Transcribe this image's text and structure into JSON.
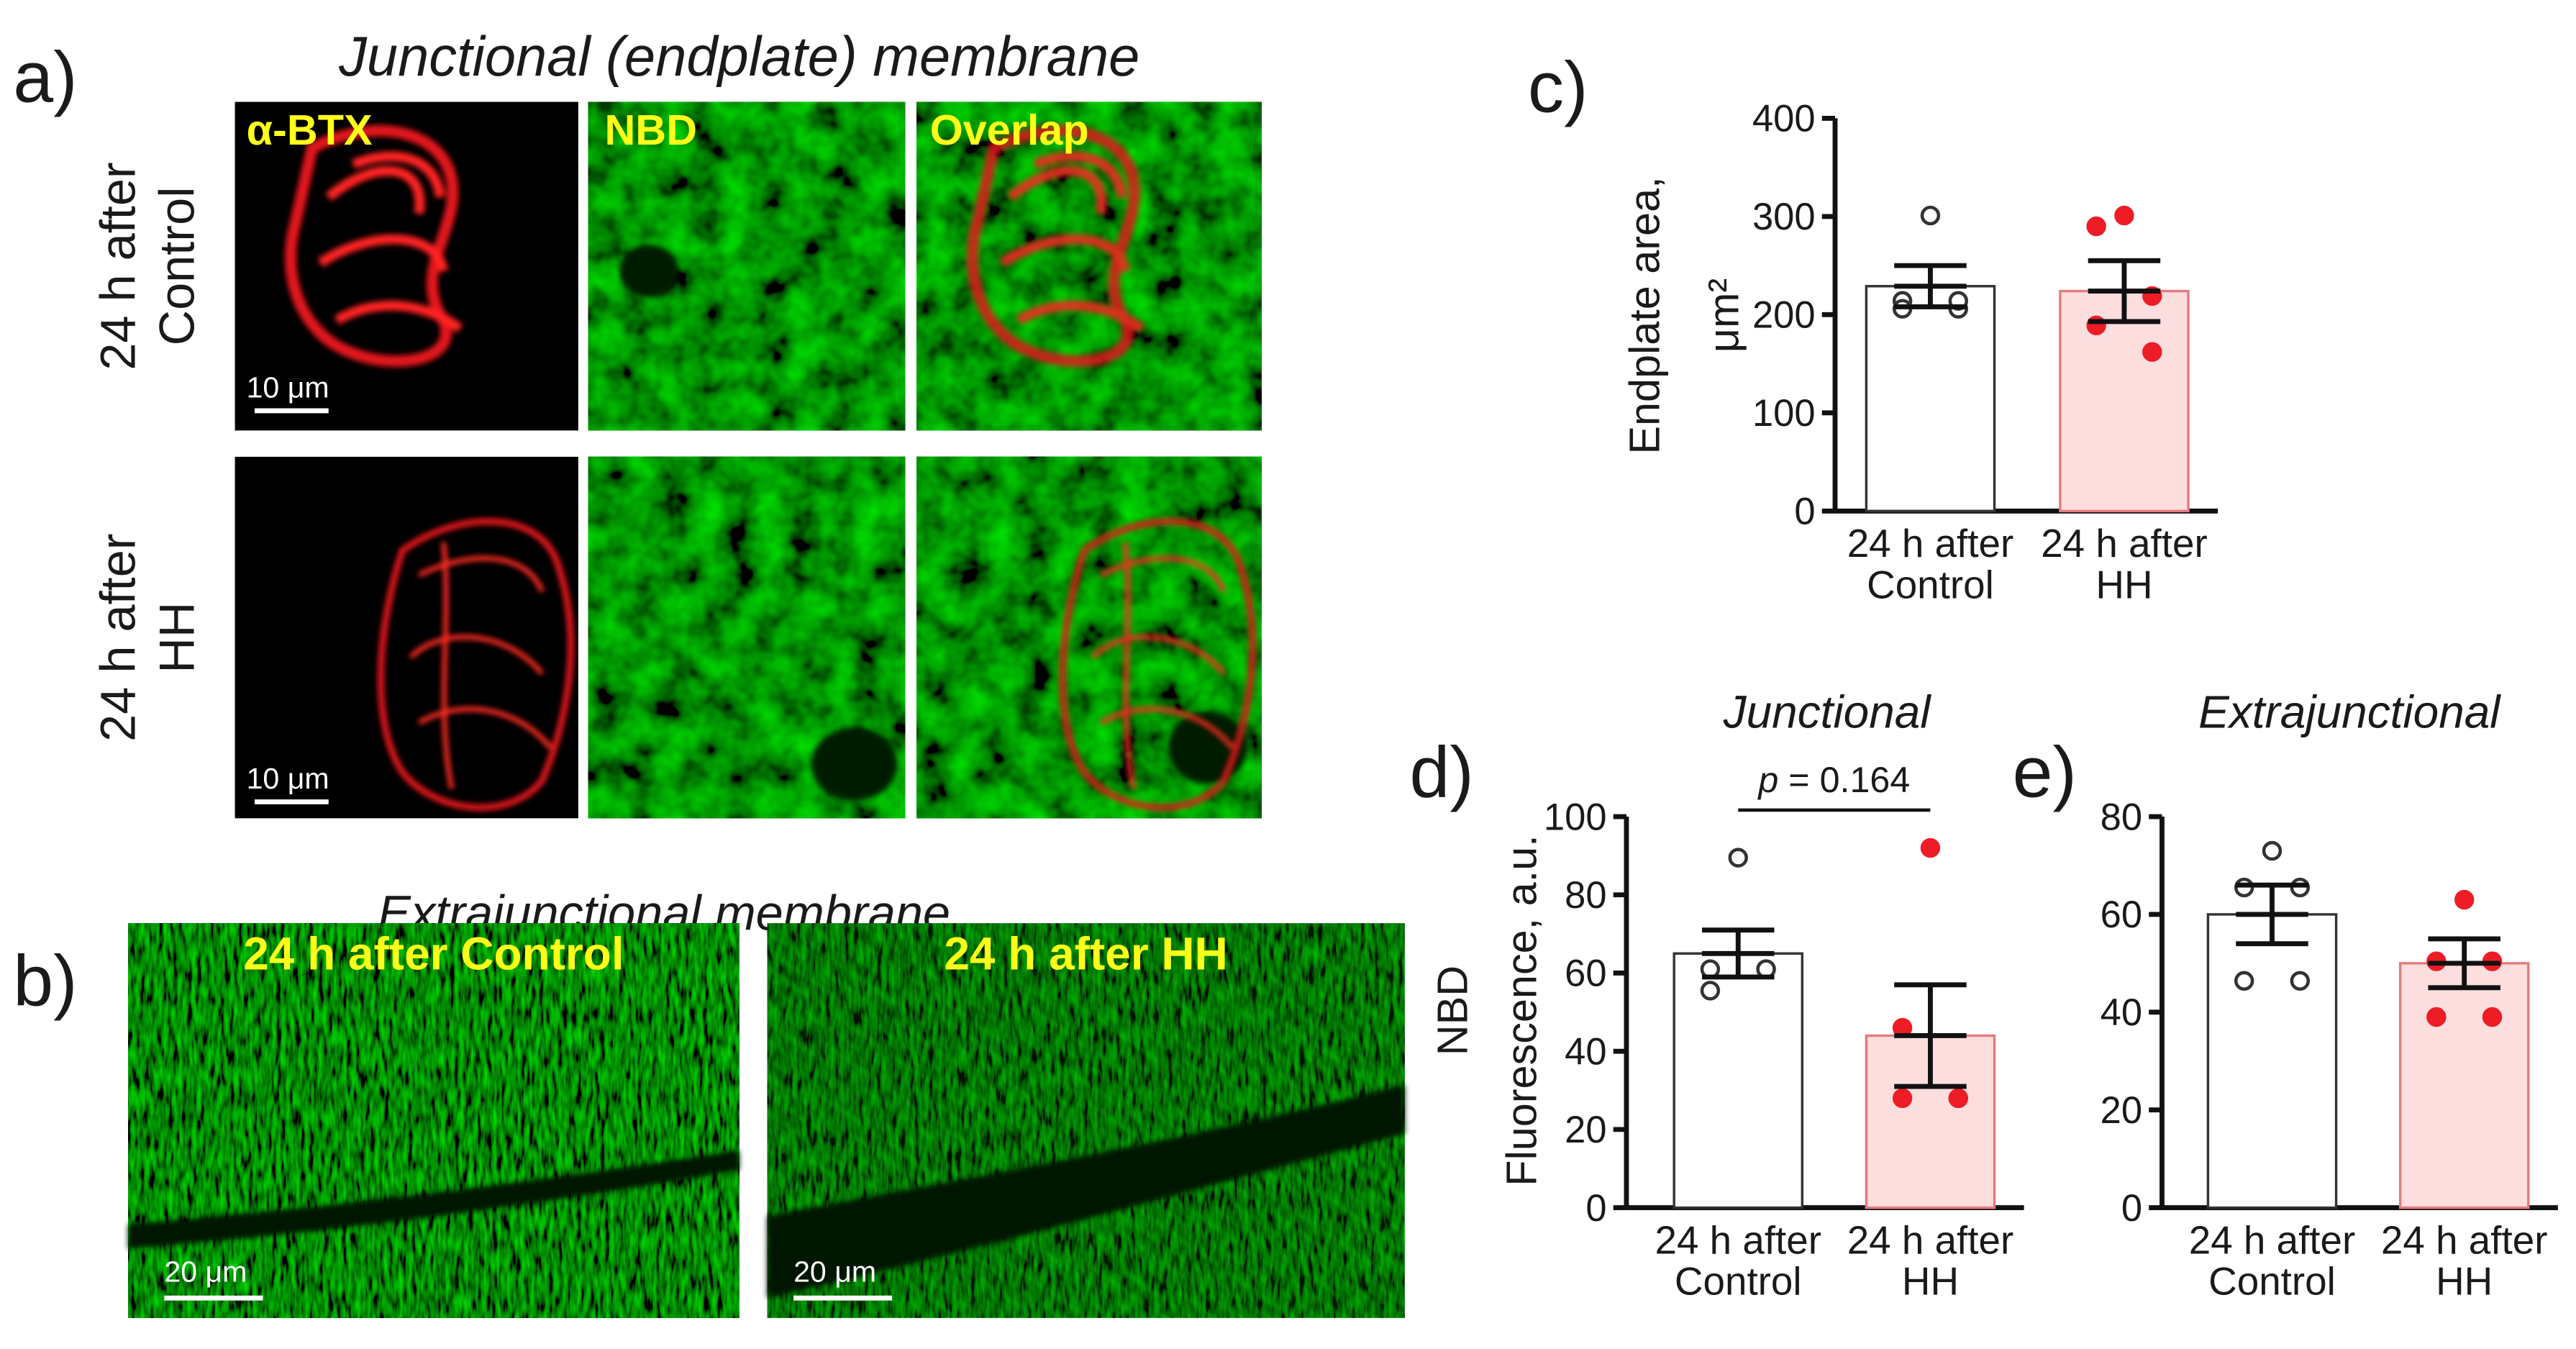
{
  "panels": {
    "a": {
      "label": "a)",
      "title": "Junctional (endplate) membrane",
      "columns": [
        "α-BTX",
        "NBD",
        "Overlap"
      ],
      "rows": [
        {
          "label": "24 h after Control",
          "scale_bar": "10 μm"
        },
        {
          "label": "24 h after HH",
          "scale_bar": "10 μm"
        }
      ]
    },
    "b": {
      "label": "b)",
      "title": "Extrajunctional membrane",
      "images": [
        {
          "label": "24 h after Control",
          "scale_bar": "20 μm"
        },
        {
          "label": "24 h after HH",
          "scale_bar": "20 μm"
        }
      ]
    }
  },
  "chart_data": [
    {
      "type": "bar",
      "panel_label": "c)",
      "ylabel": [
        "Endplate area,",
        "μm²"
      ],
      "categories": [
        "24 h after Control",
        "24 h after HH"
      ],
      "values": [
        229,
        224
      ],
      "errors": [
        21,
        31
      ],
      "points": [
        [
          301,
          214,
          206,
          206,
          214
        ],
        [
          301,
          290,
          219,
          189,
          162
        ]
      ],
      "ylim": [
        0,
        400
      ],
      "yticks": [
        0,
        100,
        200,
        300,
        400
      ],
      "colors": [
        "#ffffff",
        "#fcdede"
      ],
      "edge_colors": [
        "#333333",
        "#e57b80"
      ],
      "point_fill": [
        "#ffffff",
        "#ee1c25"
      ],
      "point_edge": [
        "#333333",
        "#ee1c25"
      ]
    },
    {
      "type": "bar",
      "panel_label": "d)",
      "title": "Junctional",
      "ylabel": [
        "NBD",
        "Fluorescence, a.u."
      ],
      "annotation": "p = 0.164",
      "categories": [
        "24 h after Control",
        "24 h after HH"
      ],
      "values": [
        65,
        44
      ],
      "errors": [
        6,
        13
      ],
      "points": [
        [
          89.5,
          61,
          61,
          55.5,
          61
        ],
        [
          92,
          46,
          28,
          28,
          28
        ]
      ],
      "ylim": [
        0,
        100
      ],
      "yticks": [
        0,
        20,
        40,
        60,
        80,
        100
      ],
      "colors": [
        "#ffffff",
        "#fcdede"
      ],
      "edge_colors": [
        "#333333",
        "#e57b80"
      ],
      "point_fill": [
        "#ffffff",
        "#ee1c25"
      ],
      "point_edge": [
        "#333333",
        "#ee1c25"
      ]
    },
    {
      "type": "bar",
      "panel_label": "e)",
      "title": "Extrajunctional",
      "categories": [
        "24 h after Control",
        "24 h after HH"
      ],
      "values": [
        60,
        50
      ],
      "errors": [
        6,
        5
      ],
      "points": [
        [
          73,
          65.5,
          65.5,
          46.4,
          46.4
        ],
        [
          63,
          50.4,
          50.4,
          39,
          39
        ]
      ],
      "ylim": [
        0,
        80
      ],
      "yticks": [
        0,
        20,
        40,
        60,
        80
      ],
      "colors": [
        "#ffffff",
        "#fcdede"
      ],
      "edge_colors": [
        "#333333",
        "#e57b80"
      ],
      "point_fill": [
        "#ffffff",
        "#ee1c25"
      ],
      "point_edge": [
        "#333333",
        "#ee1c25"
      ]
    }
  ]
}
